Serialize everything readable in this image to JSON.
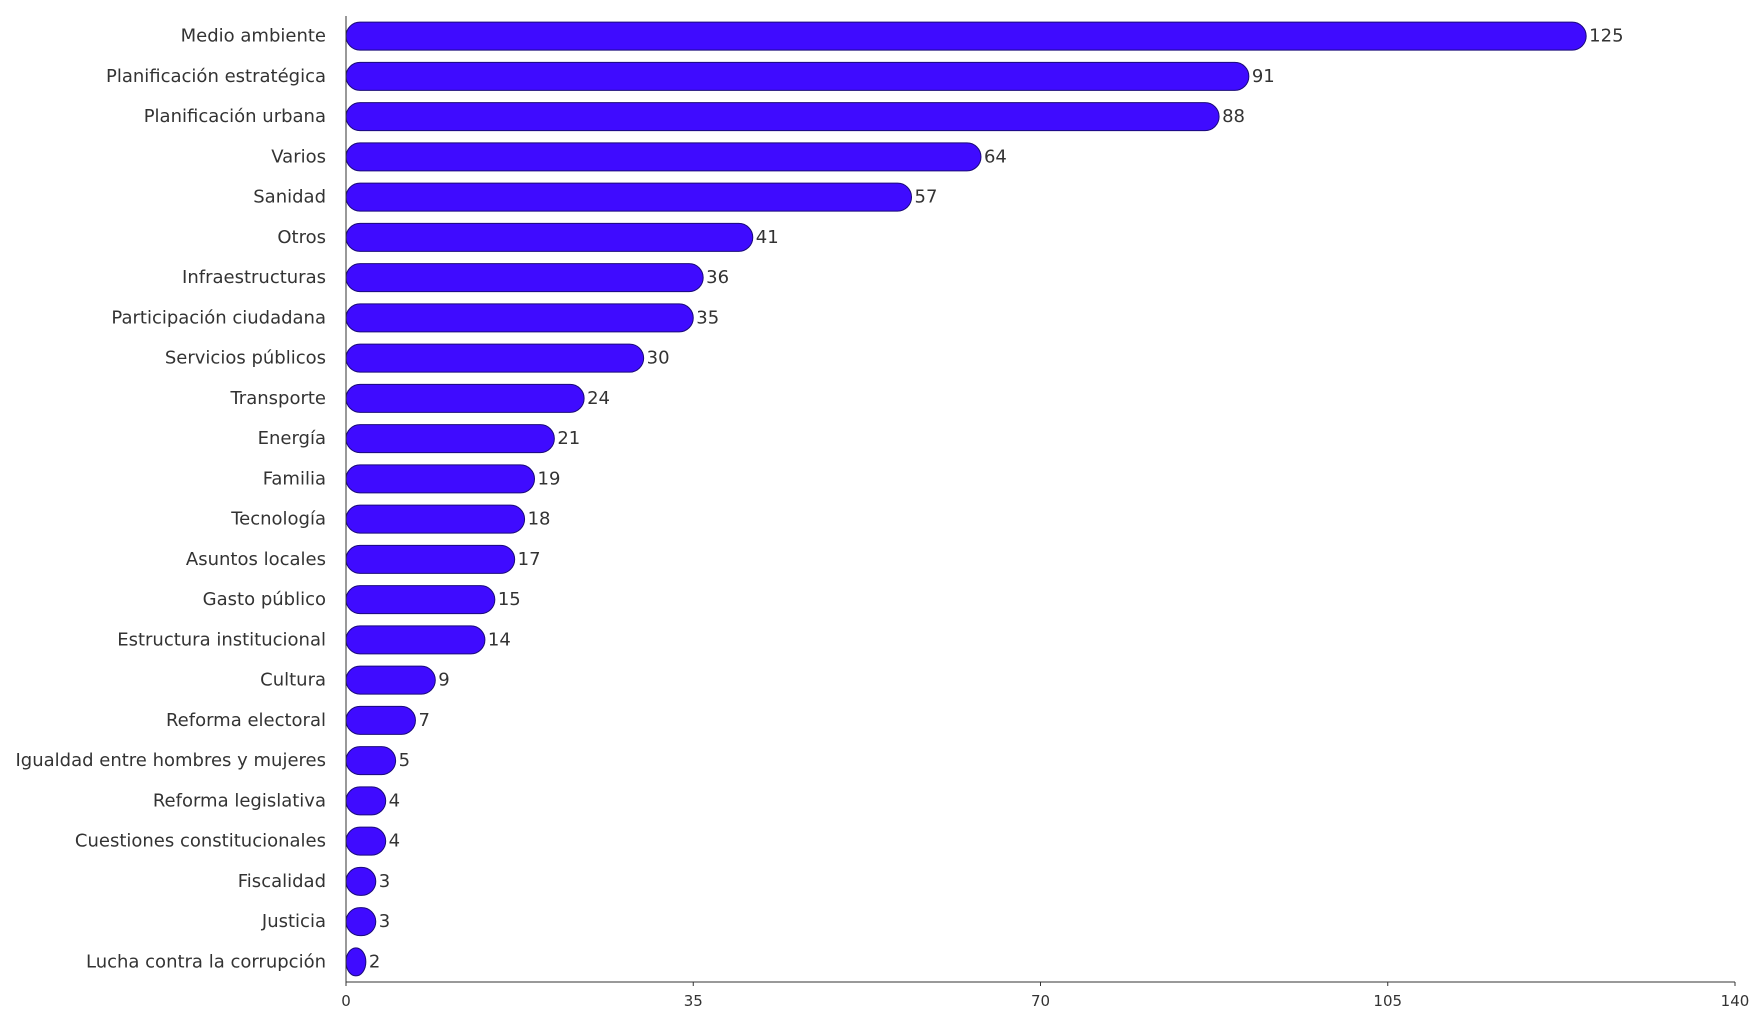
{
  "colors": {
    "bar": "#3f0bff",
    "bar_stroke": "#1a0a7a",
    "text": "#333333",
    "axis": "#333333",
    "background": "#ffffff"
  },
  "chart_data": {
    "type": "bar",
    "orientation": "horizontal",
    "title": "",
    "xlabel": "",
    "ylabel": "",
    "xlim": [
      0,
      140
    ],
    "x_ticks": [
      "0",
      "35",
      "70",
      "105",
      "140"
    ],
    "grid": false,
    "legend": "none",
    "data_labels": true,
    "categories": [
      "Medio ambiente",
      "Planificación estratégica",
      "Planificación urbana",
      "Varios",
      "Sanidad",
      "Otros",
      "Infraestructuras",
      "Participación ciudadana",
      "Servicios públicos",
      "Transporte",
      "Energía",
      "Familia",
      "Tecnología",
      "Asuntos locales",
      "Gasto público",
      "Estructura institucional",
      "Cultura",
      "Reforma electoral",
      "Igualdad entre hombres y mujeres",
      "Reforma legislativa",
      "Cuestiones constitucionales",
      "Fiscalidad",
      "Justicia",
      "Lucha contra la corrupción"
    ],
    "values": [
      125,
      91,
      88,
      64,
      57,
      41,
      36,
      35,
      30,
      24,
      21,
      19,
      18,
      17,
      15,
      14,
      9,
      7,
      5,
      4,
      4,
      3,
      3,
      2
    ]
  }
}
